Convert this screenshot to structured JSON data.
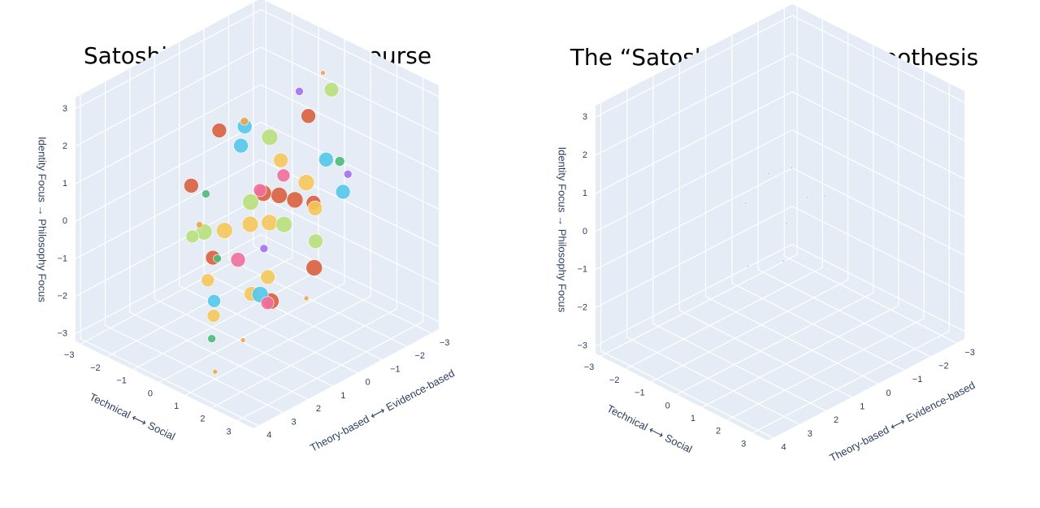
{
  "chart_data": [
    {
      "type": "scatter3d",
      "title": "Satoshi in the public discourse",
      "xlabel": "Technical ⟷ Social",
      "ylabel": "Theory-based ⟷ Evidence-based",
      "zlabel": "Identity Focus → Philosophy Focus",
      "xlim": [
        -3.2,
        3.6
      ],
      "ylim": [
        -3.3,
        4.2
      ],
      "zlim": [
        -3.2,
        3.3
      ],
      "xticks": [
        {
          "value": -3,
          "label": "−3"
        },
        {
          "value": -2,
          "label": "−2"
        },
        {
          "value": -1,
          "label": "−1"
        },
        0,
        1,
        2,
        3
      ],
      "yticks": [
        {
          "value": -3,
          "label": "−3"
        },
        {
          "value": -2,
          "label": "−2"
        },
        {
          "value": -1,
          "label": "−1"
        },
        0,
        1,
        2,
        3,
        4
      ],
      "zticks": [
        {
          "value": -3,
          "label": "−3"
        },
        {
          "value": -2,
          "label": "−2"
        },
        {
          "value": -1,
          "label": "−1"
        },
        0,
        1,
        2,
        3
      ],
      "series": [
        {
          "color": "#d95f3f",
          "x": [
            -1.2,
            1.5,
            -0.8,
            2.0,
            -1.8,
            0.6,
            1.2,
            -0.5,
            0.2,
            2.4
          ],
          "y": [
            0.5,
            0.3,
            -1.5,
            1.8,
            1.0,
            -1.2,
            -0.8,
            1.5,
            0.2,
            0.5
          ],
          "z": [
            1.8,
            0.8,
            -0.5,
            -1.2,
            0.3,
            2.2,
            -1.5,
            -1.0,
            0.5,
            1.1
          ],
          "size": [
            9,
            10,
            10,
            10,
            9,
            9,
            10,
            9,
            10,
            9
          ]
        },
        {
          "color": "#f5c85c",
          "x": [
            0.5,
            -0.3,
            1.0,
            -1.0,
            0.3,
            1.6,
            -0.6,
            0.8,
            0.0,
            1.8
          ],
          "y": [
            1.0,
            0.2,
            0.8,
            0.5,
            -0.4,
            1.5,
            1.6,
            -0.9,
            2.0,
            -0.2
          ],
          "z": [
            -1.8,
            -0.5,
            0.2,
            -0.8,
            1.2,
            -0.8,
            -1.6,
            0.6,
            -2.2,
            0.5
          ],
          "size": [
            9,
            10,
            10,
            10,
            9,
            9,
            8,
            10,
            8,
            9
          ]
        },
        {
          "color": "#b8e07d",
          "x": [
            0.0,
            -1.5,
            1.2,
            0.8,
            -0.5,
            2.2,
            -1.0
          ],
          "y": [
            0.5,
            0.8,
            -1.5,
            0.0,
            -0.8,
            0.2,
            1.8
          ],
          "z": [
            0.3,
            -0.9,
            3.0,
            -0.2,
            1.4,
            -0.1,
            -0.5
          ],
          "size": [
            10,
            10,
            9,
            10,
            10,
            9,
            8
          ]
        },
        {
          "color": "#53c8ea",
          "x": [
            -1.6,
            0.9,
            1.4,
            -0.7,
            2.3,
            0.3
          ],
          "y": [
            -0.8,
            -1.6,
            1.6,
            0.0,
            -0.8,
            2.3
          ],
          "z": [
            0.8,
            1.0,
            -1.3,
            1.9,
            0.9,
            -1.6
          ],
          "size": [
            9,
            9,
            10,
            9,
            9,
            8
          ]
        },
        {
          "color": "#ef6f9b",
          "x": [
            -0.2,
            0.5,
            1.3,
            -0.4
          ],
          "y": [
            0.8,
            -0.3,
            1.2,
            -0.3
          ],
          "z": [
            -1.2,
            0.9,
            -1.7,
            0.2
          ],
          "size": [
            9,
            8,
            8,
            8
          ]
        },
        {
          "color": "#a56ef2",
          "x": [
            -0.5,
            2.3,
            0.6
          ],
          "y": [
            -2.0,
            -1.0,
            0.6
          ],
          "z": [
            2.2,
            1.3,
            -0.7
          ],
          "size": [
            5,
            5,
            5
          ]
        },
        {
          "color": "#4cba7c",
          "x": [
            -1.9,
            0.4,
            1.8,
            -0.8
          ],
          "y": [
            0.3,
            2.5,
            -1.2,
            1.0
          ],
          "z": [
            -0.2,
            -2.5,
            1.4,
            -1.3
          ],
          "size": [
            5,
            5,
            6,
            5
          ]
        },
        {
          "color": "#f2a34c",
          "x": [
            0.4,
            1.0,
            -1.3,
            2.6,
            1.5,
            -0.9
          ],
          "y": [
            -2.0,
            3.0,
            1.2,
            1.0,
            2.4,
            -0.2
          ],
          "z": [
            3.0,
            -3.0,
            -0.5,
            -1.2,
            -2.2,
            1.9
          ],
          "size": [
            3,
            3,
            4,
            3,
            3,
            5
          ]
        }
      ]
    },
    {
      "type": "scatter3d",
      "title": "The “Satoshi as a team” hypothesis",
      "xlabel": "Technical ⟷ Social",
      "ylabel": "Theory-based ⟷ Evidence-based",
      "zlabel": "Identity Focus → Philosophy Focus",
      "xlim": [
        -3.2,
        3.6
      ],
      "ylim": [
        -3.3,
        4.2
      ],
      "zlim": [
        -3.2,
        3.3
      ],
      "xticks": [
        {
          "value": -3,
          "label": "−3"
        },
        {
          "value": -2,
          "label": "−2"
        },
        {
          "value": -1,
          "label": "−1"
        },
        0,
        1,
        2,
        3
      ],
      "yticks": [
        {
          "value": -3,
          "label": "−3"
        },
        {
          "value": -2,
          "label": "−2"
        },
        {
          "value": -1,
          "label": "−1"
        },
        0,
        1,
        2,
        3,
        4
      ],
      "zticks": [
        {
          "value": -3,
          "label": "−3"
        },
        {
          "value": -2,
          "label": "−2"
        },
        {
          "value": -1,
          "label": "−1"
        },
        0,
        1,
        2,
        3
      ],
      "series": [
        {
          "color": "#d6d9e2",
          "x": [
            -0.5,
            0.3,
            0.8,
            -1.0,
            0.0,
            1.2,
            -0.3,
            0.6
          ],
          "y": [
            0.2,
            -0.5,
            0.9,
            0.6,
            0.0,
            -0.3,
            1.2,
            0.4
          ],
          "z": [
            1.0,
            0.4,
            -0.6,
            0.2,
            -0.2,
            0.8,
            -1.0,
            1.6
          ],
          "size": [
            2,
            2,
            2,
            2,
            2,
            2,
            2,
            2
          ]
        }
      ]
    }
  ]
}
